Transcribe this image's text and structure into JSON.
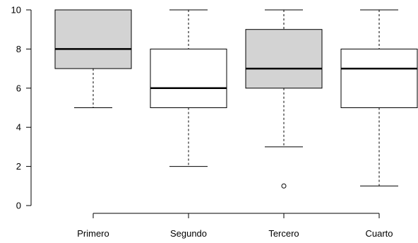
{
  "chart_data": {
    "type": "boxplot",
    "categories": [
      "Primero",
      "Segundo",
      "Tercero",
      "Cuarto"
    ],
    "series": [
      {
        "category": "Primero",
        "fill": "#d3d3d3",
        "min": 5,
        "q1": 7,
        "median": 8,
        "q3": 10,
        "max": 10,
        "outliers": []
      },
      {
        "category": "Segundo",
        "fill": "#ffffff",
        "min": 2,
        "q1": 5,
        "median": 6,
        "q3": 8,
        "max": 10,
        "outliers": []
      },
      {
        "category": "Tercero",
        "fill": "#d3d3d3",
        "min": 3,
        "q1": 6,
        "median": 7,
        "q3": 9,
        "max": 10,
        "outliers": [
          1
        ]
      },
      {
        "category": "Cuarto",
        "fill": "#ffffff",
        "min": 1,
        "q1": 5,
        "median": 7,
        "q3": 8,
        "max": 10,
        "outliers": []
      }
    ],
    "ylim": [
      0,
      10
    ],
    "yticks": [
      0,
      2,
      4,
      6,
      8,
      10
    ],
    "title": "",
    "xlabel": "",
    "ylabel": "",
    "grid": false
  }
}
